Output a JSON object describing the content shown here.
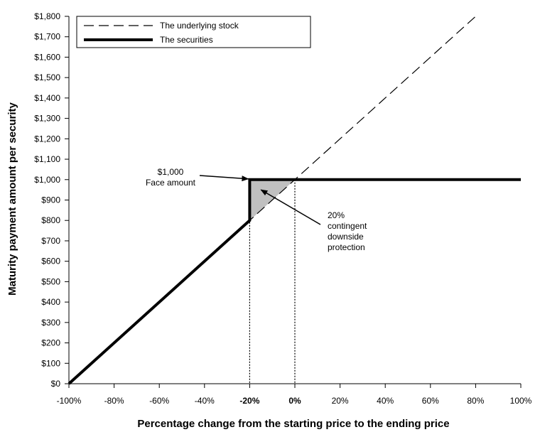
{
  "chart_data": {
    "type": "line",
    "xlabel": "Percentage change from the starting price to the ending price",
    "ylabel": "Maturity payment amount per security",
    "xlim": [
      -100,
      100
    ],
    "ylim": [
      0,
      1800
    ],
    "x_ticks": [
      "-100%",
      "-80%",
      "-60%",
      "-40%",
      "-20%",
      "0%",
      "20%",
      "40%",
      "60%",
      "80%",
      "100%"
    ],
    "x_bold_ticks": [
      "-20%",
      "0%"
    ],
    "y_ticks": [
      "$0",
      "$100",
      "$200",
      "$300",
      "$400",
      "$500",
      "$600",
      "$700",
      "$800",
      "$900",
      "$1,000",
      "$1,100",
      "$1,200",
      "$1,300",
      "$1,400",
      "$1,500",
      "$1,600",
      "$1,700",
      "$1,800"
    ],
    "grid": false,
    "legend_position": "top-left",
    "series": [
      {
        "name": "The underlying stock",
        "style": "dashed",
        "color": "#000000",
        "x": [
          -100,
          80
        ],
        "y": [
          0,
          1800
        ]
      },
      {
        "name": "The securities",
        "style": "solid-thick",
        "color": "#000000",
        "x": [
          -100,
          -20,
          -20,
          100
        ],
        "y": [
          0,
          800,
          1000,
          1000
        ]
      }
    ],
    "shaded_region": {
      "x": [
        -20,
        -20,
        0
      ],
      "y": [
        800,
        1000,
        1000
      ],
      "color": "#c0c0c0"
    },
    "reference_lines": [
      {
        "x": -20,
        "style": "dotted"
      },
      {
        "x": 0,
        "style": "dotted"
      }
    ],
    "annotations": [
      {
        "lines": [
          "$1,000",
          "Face amount"
        ],
        "arrow_to": {
          "x": -20,
          "y": 1000
        }
      },
      {
        "lines": [
          "20%",
          "contingent",
          "downside",
          "protection"
        ],
        "arrow_to": {
          "x": -15,
          "y": 950
        }
      }
    ]
  }
}
